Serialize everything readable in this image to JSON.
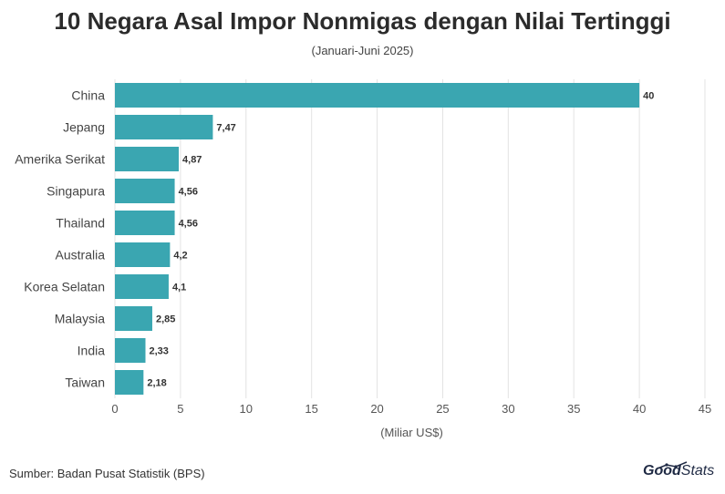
{
  "chart_data": {
    "type": "bar",
    "orientation": "horizontal",
    "title": "10 Negara Asal Impor Nonmigas dengan Nilai Tertinggi",
    "subtitle": "(Januari-Juni 2025)",
    "categories": [
      "China",
      "Jepang",
      "Amerika Serikat",
      "Singapura",
      "Thailand",
      "Australia",
      "Korea Selatan",
      "Malaysia",
      "India",
      "Taiwan"
    ],
    "values": [
      40,
      7.47,
      4.87,
      4.56,
      4.56,
      4.2,
      4.1,
      2.85,
      2.33,
      2.18
    ],
    "value_labels": [
      "40",
      "7,47",
      "4,87",
      "4,56",
      "4,56",
      "4,2",
      "4,1",
      "2,85",
      "2,33",
      "2,18"
    ],
    "xlabel": "(Miliar US$)",
    "ylabel": "",
    "xlim": [
      0,
      45
    ],
    "xticks": [
      0,
      5,
      10,
      15,
      20,
      25,
      30,
      35,
      40,
      45
    ],
    "grid": true,
    "bar_color": "#3aa6b1"
  },
  "footer": {
    "source": "Sumber: Badan Pusat Statistik (BPS)",
    "logo_good": "Good",
    "logo_stats": "Stats"
  }
}
